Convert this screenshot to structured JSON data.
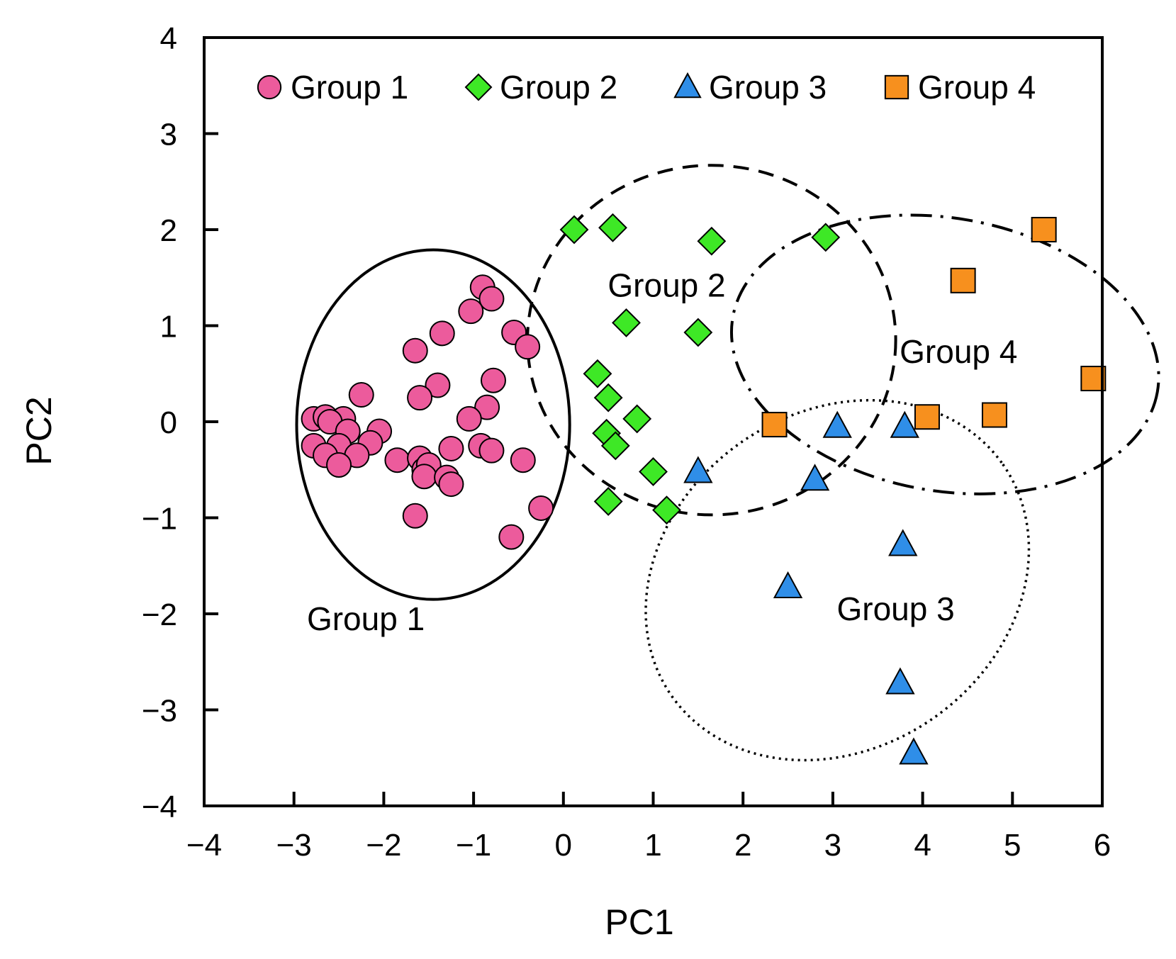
{
  "chart_data": {
    "type": "scatter",
    "title": "",
    "xlabel": "PC1",
    "ylabel": "PC2",
    "xlim": [
      -4,
      6
    ],
    "ylim": [
      -4,
      4
    ],
    "x_ticks": [
      -4,
      -3,
      -2,
      -1,
      0,
      1,
      2,
      3,
      4,
      5,
      6
    ],
    "y_ticks": [
      -4,
      -3,
      -2,
      -1,
      0,
      1,
      2,
      3,
      4
    ],
    "x_tick_labels": [
      "−4",
      "−3",
      "−2",
      "−1",
      "0",
      "1",
      "2",
      "3",
      "4",
      "5",
      "6"
    ],
    "y_tick_labels": [
      "−4",
      "−3",
      "−2",
      "−1",
      "0",
      "1",
      "2",
      "3",
      "4"
    ],
    "grid": false,
    "legend_position": "top",
    "series": [
      {
        "name": "Group 1",
        "marker": "circle",
        "color": "#ec5b9c",
        "points": [
          [
            -0.9,
            1.4
          ],
          [
            -0.8,
            1.28
          ],
          [
            -1.03,
            1.15
          ],
          [
            -1.35,
            0.92
          ],
          [
            -0.55,
            0.93
          ],
          [
            -0.4,
            0.78
          ],
          [
            -1.65,
            0.74
          ],
          [
            -0.78,
            0.43
          ],
          [
            -1.4,
            0.38
          ],
          [
            -1.6,
            0.25
          ],
          [
            -2.25,
            0.28
          ],
          [
            -0.85,
            0.15
          ],
          [
            -1.05,
            0.03
          ],
          [
            -2.78,
            0.03
          ],
          [
            -2.65,
            0.05
          ],
          [
            -2.45,
            0.03
          ],
          [
            -2.6,
            0.0
          ],
          [
            -2.4,
            -0.1
          ],
          [
            -2.05,
            -0.1
          ],
          [
            -2.15,
            -0.22
          ],
          [
            -2.78,
            -0.25
          ],
          [
            -2.5,
            -0.25
          ],
          [
            -2.65,
            -0.35
          ],
          [
            -2.3,
            -0.35
          ],
          [
            -2.5,
            -0.45
          ],
          [
            -1.85,
            -0.4
          ],
          [
            -1.25,
            -0.28
          ],
          [
            -0.92,
            -0.25
          ],
          [
            -0.8,
            -0.3
          ],
          [
            -0.45,
            -0.4
          ],
          [
            -1.6,
            -0.38
          ],
          [
            -1.55,
            -0.5
          ],
          [
            -1.5,
            -0.45
          ],
          [
            -1.55,
            -0.57
          ],
          [
            -1.3,
            -0.58
          ],
          [
            -1.25,
            -0.65
          ],
          [
            -1.65,
            -0.98
          ],
          [
            -0.25,
            -0.9
          ],
          [
            -0.58,
            -1.2
          ]
        ]
      },
      {
        "name": "Group 2",
        "marker": "diamond",
        "color": "#3ee826",
        "points": [
          [
            0.12,
            2.0
          ],
          [
            0.55,
            2.02
          ],
          [
            1.65,
            1.88
          ],
          [
            2.92,
            1.92
          ],
          [
            0.7,
            1.03
          ],
          [
            1.5,
            0.93
          ],
          [
            0.38,
            0.5
          ],
          [
            0.5,
            0.25
          ],
          [
            0.82,
            0.03
          ],
          [
            0.48,
            -0.12
          ],
          [
            0.58,
            -0.25
          ],
          [
            1.0,
            -0.52
          ],
          [
            0.5,
            -0.83
          ],
          [
            1.15,
            -0.92
          ]
        ]
      },
      {
        "name": "Group 3",
        "marker": "triangle",
        "color": "#2f8ee8",
        "points": [
          [
            3.05,
            -0.05
          ],
          [
            3.8,
            -0.05
          ],
          [
            1.5,
            -0.52
          ],
          [
            2.8,
            -0.6
          ],
          [
            3.78,
            -1.28
          ],
          [
            2.5,
            -1.72
          ],
          [
            3.75,
            -2.72
          ],
          [
            3.9,
            -3.45
          ]
        ]
      },
      {
        "name": "Group 4",
        "marker": "square",
        "color": "#f7901e",
        "points": [
          [
            5.35,
            2.0
          ],
          [
            4.45,
            1.47
          ],
          [
            5.9,
            0.45
          ],
          [
            2.35,
            -0.03
          ],
          [
            4.05,
            0.05
          ],
          [
            4.8,
            0.07
          ]
        ]
      }
    ],
    "ellipses": [
      {
        "group": "Group 1",
        "style": "solid",
        "cx": -1.45,
        "cy": -0.03,
        "rx": 1.52,
        "ry": 1.82,
        "angle": 0
      },
      {
        "group": "Group 2",
        "style": "dashed",
        "cx": 1.65,
        "cy": 0.85,
        "rx": 2.05,
        "ry": 1.82,
        "angle": 0
      },
      {
        "group": "Group 3",
        "style": "dotted",
        "cx": 3.05,
        "cy": -1.65,
        "rx": 2.25,
        "ry": 1.75,
        "angle": -35
      },
      {
        "group": "Group 4",
        "style": "dash-dot",
        "cx": 4.25,
        "cy": 0.7,
        "rx": 2.4,
        "ry": 1.42,
        "angle": 10
      }
    ],
    "annotations": [
      {
        "text": "Group 1",
        "x": -2.2,
        "y": -2.05
      },
      {
        "text": "Group 2",
        "x": 1.15,
        "y": 1.42
      },
      {
        "text": "Group 3",
        "x": 3.7,
        "y": -1.95
      },
      {
        "text": "Group 4",
        "x": 4.4,
        "y": 0.73
      }
    ]
  }
}
